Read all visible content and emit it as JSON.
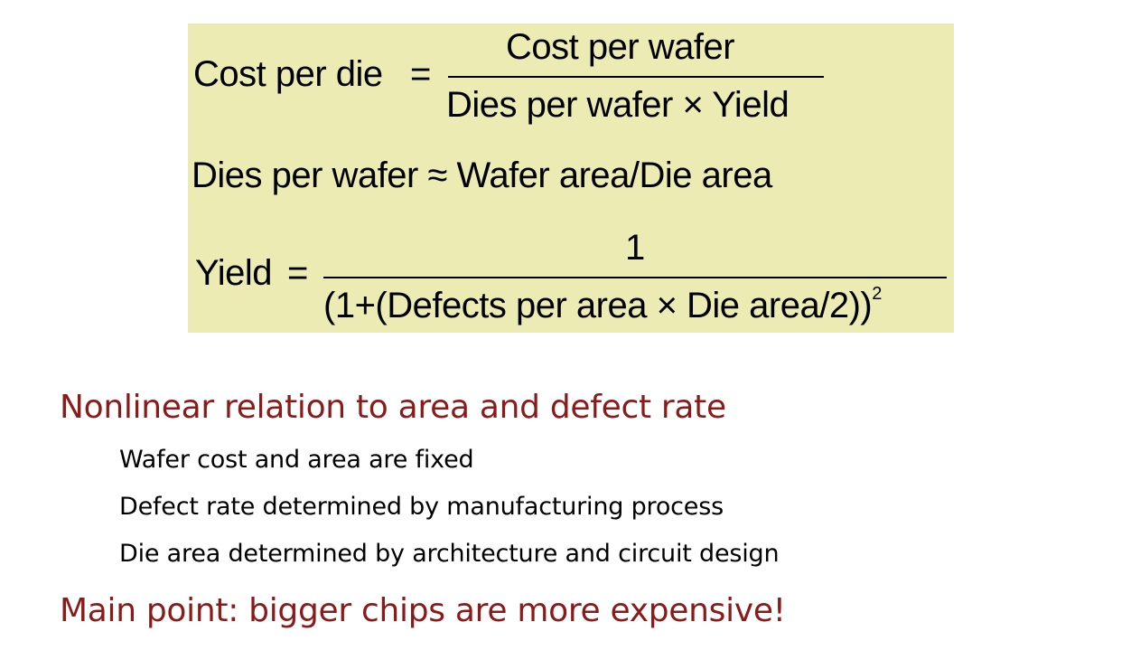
{
  "formulas": {
    "cost_per_die": {
      "lhs": "Cost per die",
      "eq": "=",
      "numerator": "Cost per wafer",
      "denominator": "Dies per wafer × Yield"
    },
    "dies_per_wafer": {
      "text": "Dies per wafer ≈ Wafer area/Die area"
    },
    "yield": {
      "lhs": "Yield",
      "eq": "=",
      "numerator": "1",
      "denominator": "(1+(Defects per area × Die area/2))",
      "exponent": "2"
    }
  },
  "bullets": {
    "heading1": "Nonlinear relation to area and defect rate",
    "items": [
      "Wafer cost and area are fixed",
      "Defect rate determined by manufacturing process",
      "Die area determined by architecture and circuit design"
    ],
    "heading2": "Main point: bigger chips are more expensive!"
  }
}
